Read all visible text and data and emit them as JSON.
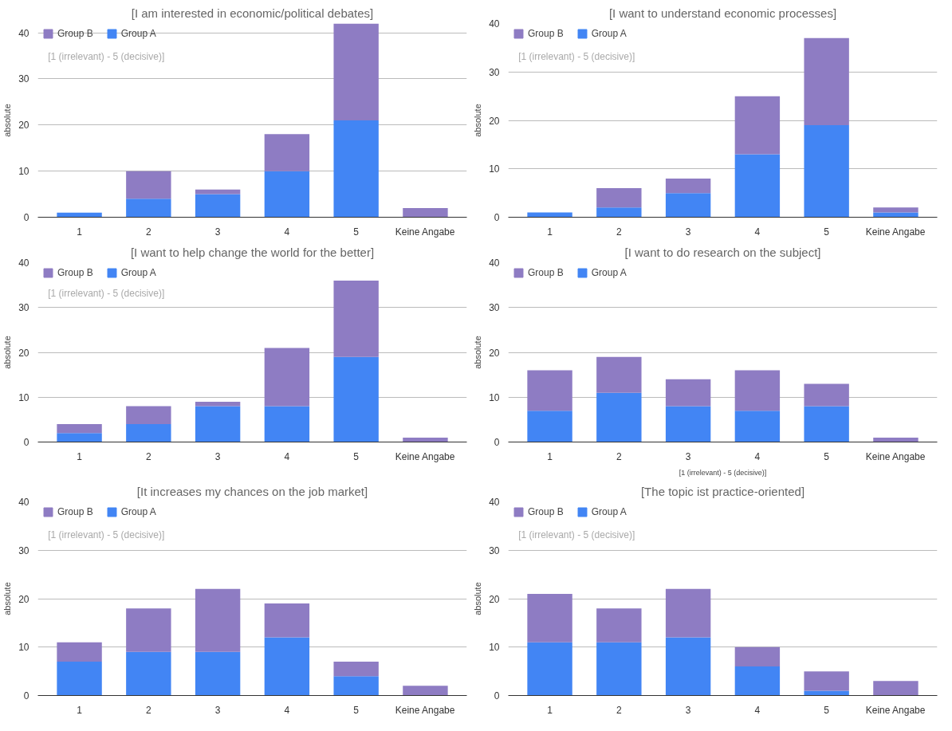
{
  "chart_data": [
    {
      "type": "bar",
      "title": "[I am interested in economic/political debates]",
      "ylabel": "absolute",
      "annotations": [
        "[1 (irrelevant) - 5 (decisive)]"
      ],
      "categories": [
        "1",
        "2",
        "3",
        "4",
        "5",
        "Keine Angabe"
      ],
      "stacked": true,
      "ylim": [
        0,
        42
      ],
      "yticks": [
        0,
        10,
        20,
        30,
        40
      ],
      "grid": "y",
      "legend": "top left",
      "series": [
        {
          "name": "Group A",
          "color": "#4285f4",
          "values": [
            1,
            4,
            5,
            10,
            21,
            0
          ]
        },
        {
          "name": "Group B",
          "color": "#8e7cc3",
          "values": [
            0,
            6,
            1,
            8,
            21,
            2
          ]
        }
      ]
    },
    {
      "type": "bar",
      "title": "[I want to understand economic processes]",
      "ylabel": "absolute",
      "annotations": [
        "[1 (irrelevant) - 5 (decisive)]"
      ],
      "categories": [
        "1",
        "2",
        "3",
        "4",
        "5",
        "Keine Angabe"
      ],
      "stacked": true,
      "ylim": [
        0,
        40
      ],
      "yticks": [
        0,
        10,
        20,
        30,
        40
      ],
      "grid": "y",
      "legend": "top left",
      "series": [
        {
          "name": "Group A",
          "color": "#4285f4",
          "values": [
            1,
            2,
            5,
            13,
            19,
            1
          ]
        },
        {
          "name": "Group B",
          "color": "#8e7cc3",
          "values": [
            0,
            4,
            3,
            12,
            18,
            1
          ]
        }
      ]
    },
    {
      "type": "bar",
      "title": "[I want to help change the world for the better]",
      "ylabel": "absolute",
      "annotations": [
        "[1 (irrelevant) - 5 (decisive)]"
      ],
      "categories": [
        "1",
        "2",
        "3",
        "4",
        "5",
        "Keine Angabe"
      ],
      "stacked": true,
      "ylim": [
        0,
        40
      ],
      "yticks": [
        0,
        10,
        20,
        30,
        40
      ],
      "grid": "y",
      "legend": "top left",
      "series": [
        {
          "name": "Group A",
          "color": "#4285f4",
          "values": [
            2,
            4,
            8,
            8,
            19,
            0
          ]
        },
        {
          "name": "Group B",
          "color": "#8e7cc3",
          "values": [
            2,
            4,
            1,
            13,
            17,
            1
          ]
        }
      ]
    },
    {
      "type": "bar",
      "title": "[I want to do research on the subject]",
      "ylabel": "absolute",
      "xlabel": "[1 (irrelevant) - 5 (decisive)]",
      "categories": [
        "1",
        "2",
        "3",
        "4",
        "5",
        "Keine Angabe"
      ],
      "stacked": true,
      "ylim": [
        0,
        40
      ],
      "yticks": [
        0,
        10,
        20,
        30,
        40
      ],
      "grid": "y",
      "legend": "top left",
      "series": [
        {
          "name": "Group A",
          "color": "#4285f4",
          "values": [
            7,
            11,
            8,
            7,
            8,
            0
          ]
        },
        {
          "name": "Group B",
          "color": "#8e7cc3",
          "values": [
            9,
            8,
            6,
            9,
            5,
            1
          ]
        }
      ]
    },
    {
      "type": "bar",
      "title": "[It increases my chances on the job market]",
      "ylabel": "absolute",
      "annotations": [
        "[1 (irrelevant) - 5 (decisive)]"
      ],
      "categories": [
        "1",
        "2",
        "3",
        "4",
        "5",
        "Keine Angabe"
      ],
      "stacked": true,
      "ylim": [
        0,
        40
      ],
      "yticks": [
        0,
        10,
        20,
        30,
        40
      ],
      "grid": "y",
      "legend": "top left",
      "series": [
        {
          "name": "Group A",
          "color": "#4285f4",
          "values": [
            7,
            9,
            9,
            12,
            4,
            0
          ]
        },
        {
          "name": "Group B",
          "color": "#8e7cc3",
          "values": [
            4,
            9,
            13,
            7,
            3,
            2
          ]
        }
      ]
    },
    {
      "type": "bar",
      "title": "[The topic ist practice-oriented]",
      "ylabel": "absolute",
      "annotations": [
        "[1 (irrelevant) - 5 (decisive)]"
      ],
      "categories": [
        "1",
        "2",
        "3",
        "4",
        "5",
        "Keine Angabe"
      ],
      "stacked": true,
      "ylim": [
        0,
        40
      ],
      "yticks": [
        0,
        10,
        20,
        30,
        40
      ],
      "grid": "y",
      "legend": "top left",
      "series": [
        {
          "name": "Group A",
          "color": "#4285f4",
          "values": [
            11,
            11,
            12,
            6,
            1,
            0
          ]
        },
        {
          "name": "Group B",
          "color": "#8e7cc3",
          "values": [
            10,
            7,
            10,
            4,
            4,
            3
          ]
        }
      ]
    }
  ]
}
